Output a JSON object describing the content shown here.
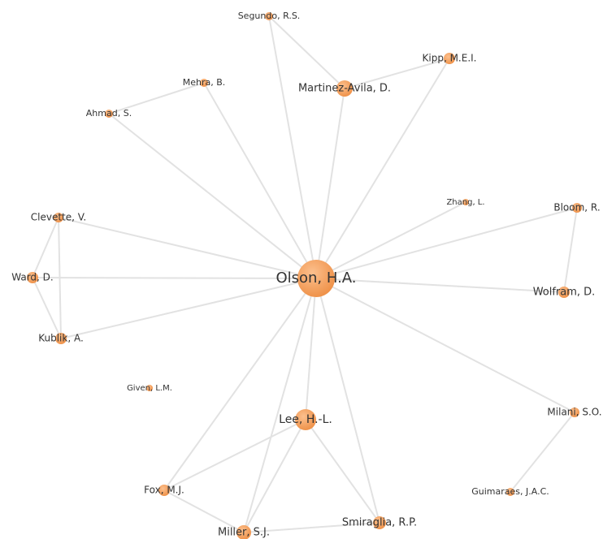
{
  "nodes": [
    {
      "label": "Olson, H.A."
    },
    {
      "label": "Lee, H.-L."
    },
    {
      "label": "Martinez-Avila, D."
    },
    {
      "label": "Segundo, R.S."
    },
    {
      "label": "Kipp, M.E.I."
    },
    {
      "label": "Mehra, B."
    },
    {
      "label": "Ahmad, S."
    },
    {
      "label": "Zhang, L."
    },
    {
      "label": "Bloom, R."
    },
    {
      "label": "Wolfram, D."
    },
    {
      "label": "Clevette, V."
    },
    {
      "label": "Ward, D."
    },
    {
      "label": "Kublik, A."
    },
    {
      "label": "Given, L.M."
    },
    {
      "label": "Milani, S.O."
    },
    {
      "label": "Guimaraes, J.A.C."
    },
    {
      "label": "Fox, M.J."
    },
    {
      "label": "Miller, S.J."
    },
    {
      "label": "Smiraglia, R.P."
    }
  ]
}
